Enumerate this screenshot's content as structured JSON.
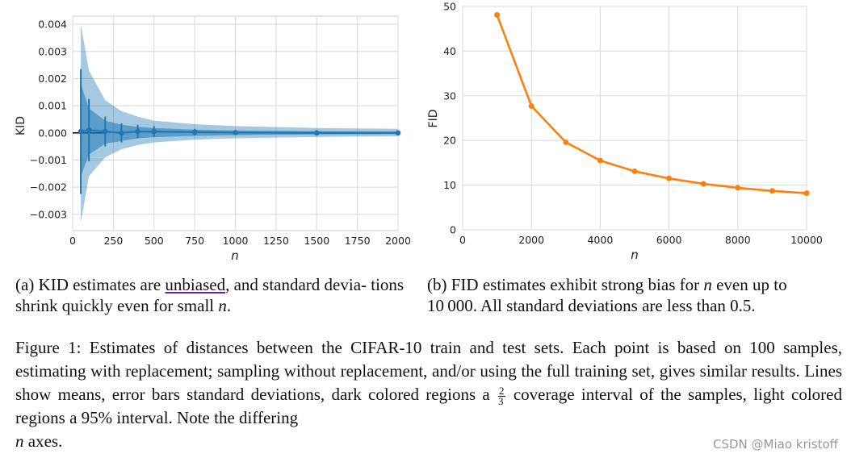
{
  "chart_data": [
    {
      "type": "line",
      "ylabel": "KID",
      "xlabel": "n",
      "xlim": [
        0,
        2000
      ],
      "ylim": [
        -0.0036,
        0.0043
      ],
      "xticks": [
        0,
        250,
        500,
        750,
        1000,
        1250,
        1500,
        1750,
        2000
      ],
      "xtick_labels": [
        "0",
        "250",
        "500",
        "750",
        "1000",
        "1250",
        "1500",
        "1750",
        "2000"
      ],
      "yticks": [
        -0.003,
        -0.002,
        -0.001,
        0.0,
        0.001,
        0.002,
        0.003,
        0.004
      ],
      "ytick_labels": [
        "−0.003",
        "−0.002",
        "−0.001",
        "0.000",
        "0.001",
        "0.002",
        "0.003",
        "0.004"
      ],
      "grid": true,
      "color": "#1f77b4",
      "series": [
        {
          "name": "KID mean",
          "x": [
            50,
            100,
            200,
            300,
            400,
            500,
            750,
            1000,
            1500,
            2000
          ],
          "mean": [
            5e-05,
            0.0001,
            5e-05,
            0.0,
            5e-05,
            5e-05,
            3e-05,
            1e-05,
            0.0,
            0.0
          ],
          "std": [
            0.0023,
            0.00115,
            0.00055,
            0.00035,
            0.00025,
            0.0002,
            0.00012,
            8e-05,
            5e-05,
            3e-05
          ],
          "band_dark_upper": [
            0.0018,
            0.0009,
            0.00045,
            0.0003,
            0.00022,
            0.00018,
            0.00012,
            9e-05,
            6e-05,
            5e-05
          ],
          "band_dark_lower": [
            -0.0016,
            -0.0008,
            -0.0004,
            -0.0003,
            -0.0002,
            -0.00016,
            -0.00011,
            -8e-05,
            -6e-05,
            -5e-05
          ],
          "band_light_upper": [
            0.004,
            0.0023,
            0.0012,
            0.0008,
            0.0006,
            0.00045,
            0.00032,
            0.00025,
            0.00018,
            0.00015
          ],
          "band_light_lower": [
            -0.0033,
            -0.0016,
            -0.0009,
            -0.0006,
            -0.00045,
            -0.00035,
            -0.00025,
            -0.0002,
            -0.00015,
            -0.00012
          ]
        }
      ]
    },
    {
      "type": "line",
      "ylabel": "FID",
      "xlabel": "n",
      "xlim": [
        0,
        10000
      ],
      "ylim": [
        0,
        50
      ],
      "xticks": [
        0,
        2000,
        4000,
        6000,
        8000,
        10000
      ],
      "xtick_labels": [
        "0",
        "2000",
        "4000",
        "6000",
        "8000",
        "10000"
      ],
      "yticks": [
        0,
        10,
        20,
        30,
        40,
        50
      ],
      "ytick_labels": [
        "0",
        "10",
        "20",
        "30",
        "40",
        "50"
      ],
      "grid": true,
      "color": "#ff7f0e",
      "series": [
        {
          "name": "FID mean",
          "x": [
            1000,
            2000,
            3000,
            4000,
            5000,
            6000,
            7000,
            8000,
            9000,
            10000
          ],
          "values": [
            48.1,
            27.7,
            19.6,
            15.5,
            13.1,
            11.5,
            10.3,
            9.4,
            8.7,
            8.2
          ]
        }
      ]
    }
  ],
  "captions": {
    "a_prefix": "(a) KID estimates are ",
    "a_underlined": "unbiased",
    "a_mid": ", and standard devia- tions shrink quickly even for small ",
    "a_math": "n",
    "a_end": ".",
    "b_prefix": "(b) FID estimates exhibit strong bias for ",
    "b_math": "n",
    "b_mid": " even up to ",
    "b_num": "10 000",
    "b_mid2": ". All standard deviations are less than ",
    "b_val": "0.5",
    "b_end": ".",
    "main_1": "Figure 1: Estimates of distances between the CIFAR-10 train and test sets. Each point is based on 100 samples, estimating with replacement; sampling without replacement, and/or using the full training set, gives similar results. Lines show means, error bars standard deviations, dark colored regions a ",
    "frac_num": "2",
    "frac_den": "3",
    "main_2": " coverage interval of the samples, light colored regions a ",
    "main_pct": "95%",
    "main_3": " interval. Note the differing ",
    "main_math": "n",
    "main_4": " axes."
  },
  "watermark": "CSDN @Miao kristoff"
}
